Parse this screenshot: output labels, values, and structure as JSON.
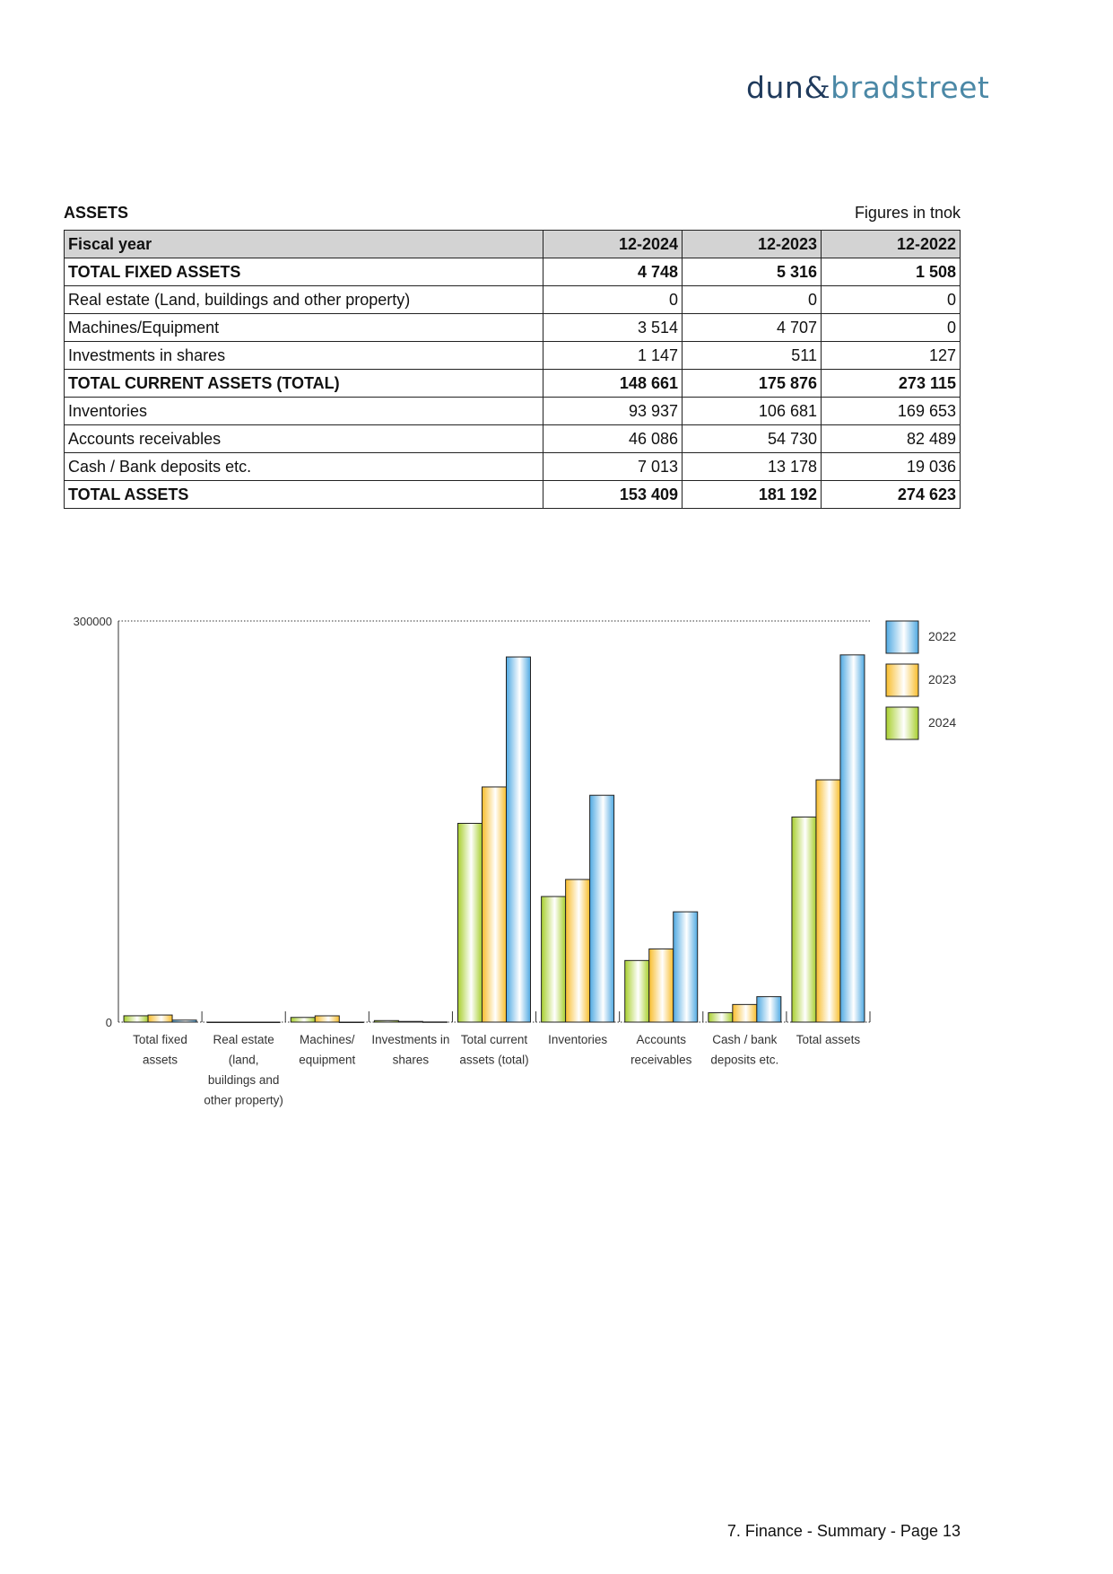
{
  "logo": {
    "text": "dun & bradstreet",
    "part1": "dun",
    "amp": "&",
    "part2": "bradstreet"
  },
  "section": {
    "title": "ASSETS",
    "note": "Figures in tnok"
  },
  "table": {
    "header": [
      "Fiscal year",
      "12-2024",
      "12-2023",
      "12-2022"
    ],
    "rows": [
      {
        "label": "TOTAL FIXED ASSETS",
        "values": [
          "4 748",
          "5 316",
          "1 508"
        ],
        "bold": true
      },
      {
        "label": "Real estate (Land, buildings and other property)",
        "values": [
          "0",
          "0",
          "0"
        ],
        "bold": false
      },
      {
        "label": "Machines/Equipment",
        "values": [
          "3 514",
          "4 707",
          "0"
        ],
        "bold": false
      },
      {
        "label": "Investments in shares",
        "values": [
          "1 147",
          "511",
          "127"
        ],
        "bold": false
      },
      {
        "label": "TOTAL CURRENT ASSETS (TOTAL)",
        "values": [
          "148 661",
          "175 876",
          "273 115"
        ],
        "bold": true
      },
      {
        "label": "Inventories",
        "values": [
          "93 937",
          "106 681",
          "169 653"
        ],
        "bold": false
      },
      {
        "label": "Accounts receivables",
        "values": [
          "46 086",
          "54 730",
          "82 489"
        ],
        "bold": false
      },
      {
        "label": "Cash / Bank deposits etc.",
        "values": [
          "7 013",
          "13 178",
          "19 036"
        ],
        "bold": false
      },
      {
        "label": "TOTAL ASSETS",
        "values": [
          "153 409",
          "181 192",
          "274 623"
        ],
        "bold": true
      }
    ]
  },
  "chart_data": {
    "type": "bar",
    "categories": [
      [
        "Total fixed",
        "assets"
      ],
      [
        "Real estate",
        "(land,",
        "buildings and",
        "other property)"
      ],
      [
        "Machines/",
        "equipment"
      ],
      [
        "Investments in",
        "shares"
      ],
      [
        "Total current",
        "assets (total)"
      ],
      [
        "Inventories"
      ],
      [
        "Accounts",
        "receivables"
      ],
      [
        "Cash / bank",
        "deposits etc."
      ],
      [
        "Total assets"
      ]
    ],
    "series": [
      {
        "name": "2024",
        "color": "#a8cf2e",
        "values": [
          4748,
          0,
          3514,
          1147,
          148661,
          93937,
          46086,
          7013,
          153409
        ]
      },
      {
        "name": "2023",
        "color": "#f8bd2c",
        "values": [
          5316,
          0,
          4707,
          511,
          175876,
          106681,
          54730,
          13178,
          181192
        ]
      },
      {
        "name": "2022",
        "color": "#4fa9e2",
        "values": [
          1508,
          0,
          0,
          127,
          273115,
          169653,
          82489,
          19036,
          274623
        ]
      }
    ],
    "yticks": [
      "0",
      "300000"
    ],
    "ylim": [
      0,
      300000
    ],
    "grid": "dotted line at max",
    "legend": {
      "placement": "right",
      "order": [
        "2022",
        "2023",
        "2024"
      ]
    }
  },
  "footer": {
    "text": "7. Finance - Summary - Page 13"
  }
}
